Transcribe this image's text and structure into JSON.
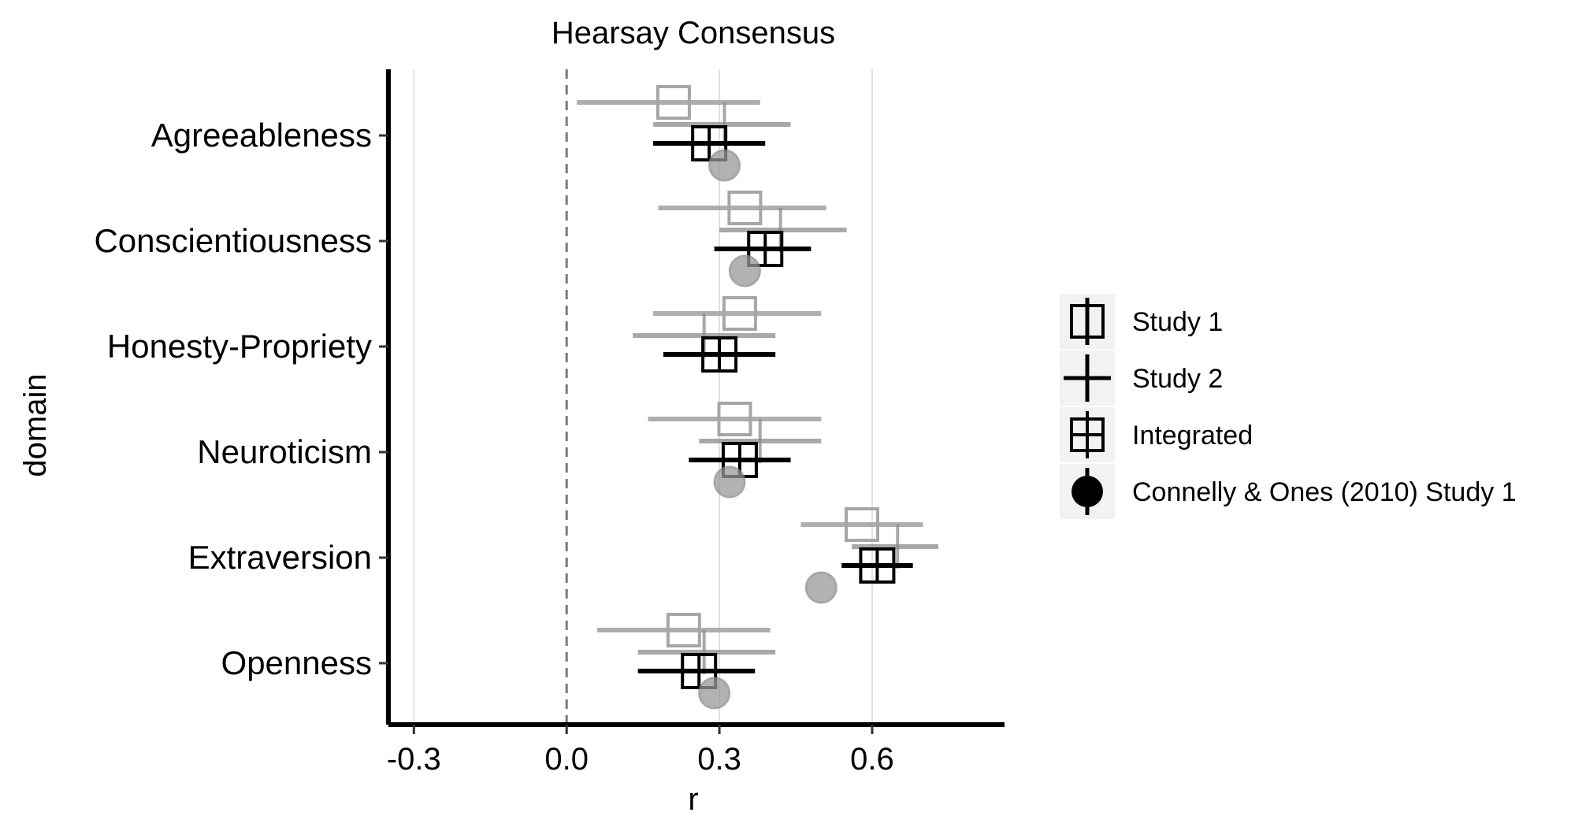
{
  "chart_data": {
    "type": "forest",
    "title": "Hearsay Consensus",
    "xlabel": "r",
    "ylabel": "domain",
    "xlim": [
      -0.35,
      0.86
    ],
    "xticks": [
      -0.3,
      0.0,
      0.3,
      0.6
    ],
    "xtick_labels": [
      "-0.3",
      "0.0",
      "0.3",
      "0.6"
    ],
    "reference_line": 0,
    "grid": "vertical major",
    "legend_position": "right",
    "categories": [
      "Agreeableness",
      "Conscientiousness",
      "Honesty-Propriety",
      "Neuroticism",
      "Extraversion",
      "Openness"
    ],
    "series": [
      {
        "name": "Study 1",
        "marker": "square",
        "color": "#a6a6a6",
        "points": [
          {
            "domain": "Agreeableness",
            "r": 0.21,
            "lo": 0.02,
            "hi": 0.38
          },
          {
            "domain": "Conscientiousness",
            "r": 0.35,
            "lo": 0.18,
            "hi": 0.51
          },
          {
            "domain": "Honesty-Propriety",
            "r": 0.34,
            "lo": 0.17,
            "hi": 0.5
          },
          {
            "domain": "Neuroticism",
            "r": 0.33,
            "lo": 0.16,
            "hi": 0.5
          },
          {
            "domain": "Extraversion",
            "r": 0.58,
            "lo": 0.46,
            "hi": 0.7
          },
          {
            "domain": "Openness",
            "r": 0.23,
            "lo": 0.06,
            "hi": 0.4
          }
        ]
      },
      {
        "name": "Study 2",
        "marker": "cross",
        "color": "#8c8c8c",
        "points": [
          {
            "domain": "Agreeableness",
            "r": 0.31,
            "lo": 0.17,
            "hi": 0.44
          },
          {
            "domain": "Conscientiousness",
            "r": 0.42,
            "lo": 0.3,
            "hi": 0.55
          },
          {
            "domain": "Honesty-Propriety",
            "r": 0.27,
            "lo": 0.13,
            "hi": 0.41
          },
          {
            "domain": "Neuroticism",
            "r": 0.38,
            "lo": 0.26,
            "hi": 0.5
          },
          {
            "domain": "Extraversion",
            "r": 0.65,
            "lo": 0.56,
            "hi": 0.73
          },
          {
            "domain": "Openness",
            "r": 0.27,
            "lo": 0.14,
            "hi": 0.41
          }
        ]
      },
      {
        "name": "Integrated",
        "marker": "square-cross",
        "color": "#000000",
        "points": [
          {
            "domain": "Agreeableness",
            "r": 0.28,
            "lo": 0.17,
            "hi": 0.39
          },
          {
            "domain": "Conscientiousness",
            "r": 0.39,
            "lo": 0.29,
            "hi": 0.48
          },
          {
            "domain": "Honesty-Propriety",
            "r": 0.3,
            "lo": 0.19,
            "hi": 0.41
          },
          {
            "domain": "Neuroticism",
            "r": 0.34,
            "lo": 0.24,
            "hi": 0.44
          },
          {
            "domain": "Extraversion",
            "r": 0.61,
            "lo": 0.54,
            "hi": 0.68
          },
          {
            "domain": "Openness",
            "r": 0.26,
            "lo": 0.14,
            "hi": 0.37
          }
        ]
      },
      {
        "name": "Connelly & Ones (2010) Study 1",
        "marker": "circle",
        "color": "#999999",
        "points": [
          {
            "domain": "Agreeableness",
            "r": 0.31
          },
          {
            "domain": "Conscientiousness",
            "r": 0.35
          },
          {
            "domain": "Honesty-Propriety",
            "r": null
          },
          {
            "domain": "Neuroticism",
            "r": 0.32
          },
          {
            "domain": "Extraversion",
            "r": 0.5
          },
          {
            "domain": "Openness",
            "r": 0.29
          }
        ]
      }
    ]
  }
}
